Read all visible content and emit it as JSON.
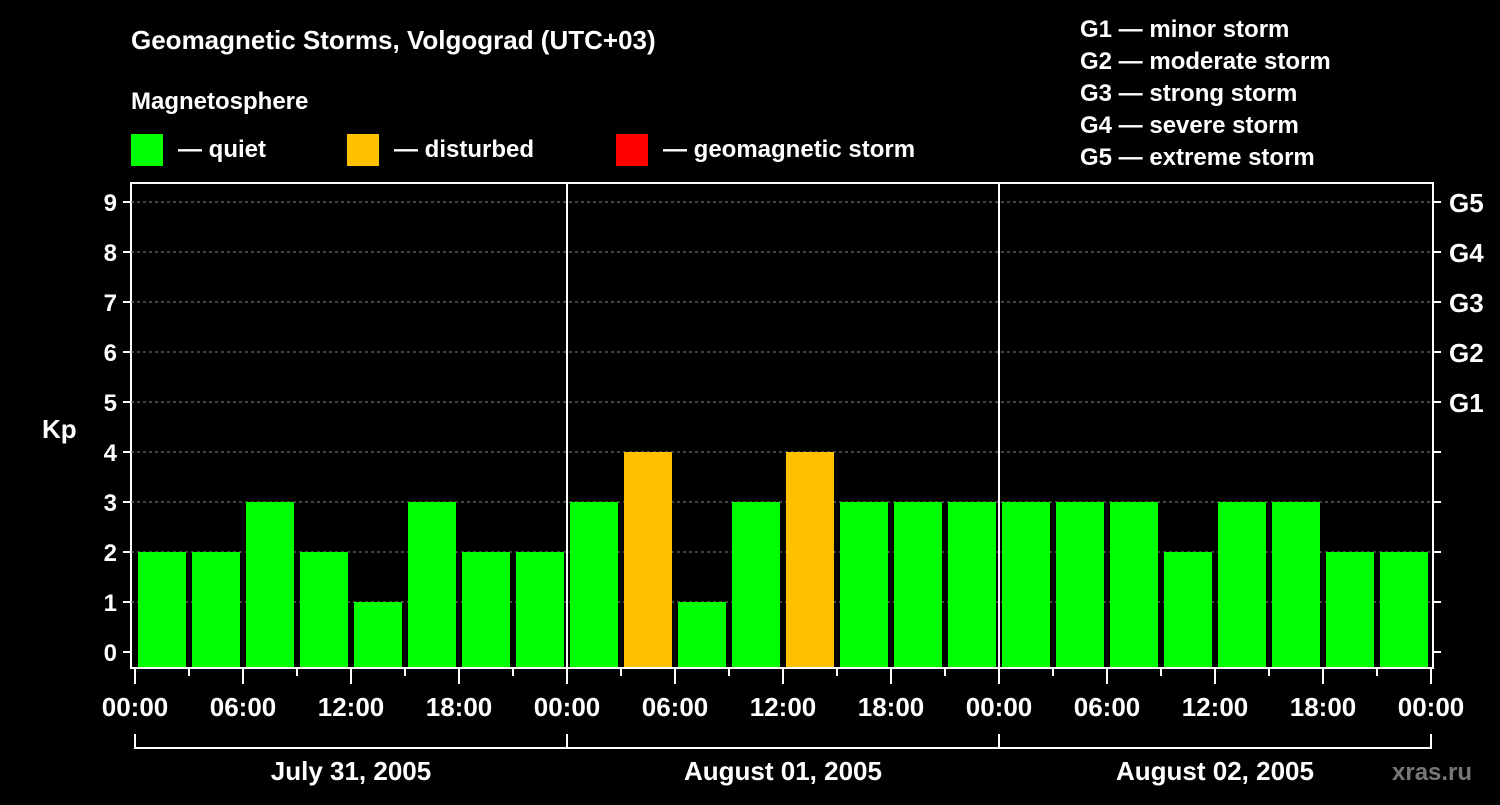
{
  "chart_data": {
    "type": "bar",
    "title": "Geomagnetic Storms, Volgograd (UTC+03)",
    "subtitle": "Magnetosphere",
    "ylabel": "Kp",
    "ylim": [
      0,
      9
    ],
    "yticks": [
      "0",
      "1",
      "2",
      "3",
      "4",
      "5",
      "6",
      "7",
      "8",
      "9"
    ],
    "right_ticks": [
      {
        "kp": 5,
        "label": "G1"
      },
      {
        "kp": 6,
        "label": "G2"
      },
      {
        "kp": 7,
        "label": "G3"
      },
      {
        "kp": 8,
        "label": "G4"
      },
      {
        "kp": 9,
        "label": "G5"
      }
    ],
    "xtick_labels": [
      "00:00",
      "06:00",
      "12:00",
      "18:00",
      "00:00",
      "06:00",
      "12:00",
      "18:00",
      "00:00",
      "06:00",
      "12:00",
      "18:00",
      "00:00"
    ],
    "days": [
      "July 31, 2005",
      "August 01, 2005",
      "August 02, 2005"
    ],
    "interval_hours": 3,
    "values": [
      2,
      2,
      3,
      2,
      1,
      3,
      2,
      2,
      3,
      4,
      1,
      3,
      4,
      3,
      3,
      3,
      3,
      3,
      3,
      2,
      3,
      3,
      2,
      2
    ],
    "legend": [
      {
        "label": "— quiet",
        "color": "#00ff00"
      },
      {
        "label": "— disturbed",
        "color": "#ffc000"
      },
      {
        "label": "— geomagnetic storm",
        "color": "#ff0000"
      }
    ],
    "scale_legend": [
      "G1 — minor storm",
      "G2 — moderate storm",
      "G3 — strong storm",
      "G4 — severe storm",
      "G5 — extreme storm"
    ],
    "grid": true
  },
  "watermark": "xras.ru"
}
